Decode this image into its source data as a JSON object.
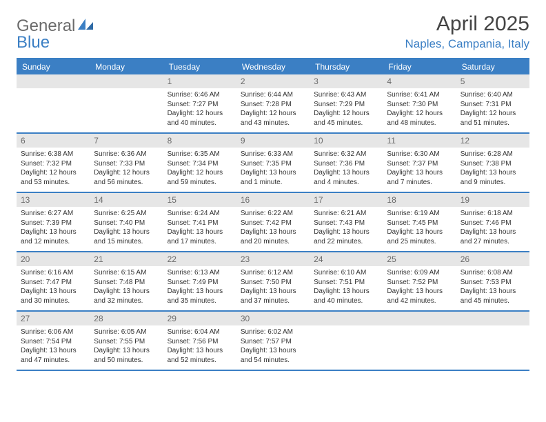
{
  "logo": {
    "text1": "General",
    "text2": "Blue"
  },
  "header": {
    "month_title": "April 2025",
    "location": "Naples, Campania, Italy"
  },
  "colors": {
    "accent": "#3b7fc4",
    "header_text": "#6b6b6b",
    "daynum_bg": "#e6e6e6",
    "body_text": "#333333",
    "white": "#ffffff"
  },
  "calendar": {
    "day_names": [
      "Sunday",
      "Monday",
      "Tuesday",
      "Wednesday",
      "Thursday",
      "Friday",
      "Saturday"
    ],
    "weeks": [
      [
        {
          "n": "",
          "sunrise": "",
          "sunset": "",
          "daylight": ""
        },
        {
          "n": "",
          "sunrise": "",
          "sunset": "",
          "daylight": ""
        },
        {
          "n": "1",
          "sunrise": "Sunrise: 6:46 AM",
          "sunset": "Sunset: 7:27 PM",
          "daylight": "Daylight: 12 hours and 40 minutes."
        },
        {
          "n": "2",
          "sunrise": "Sunrise: 6:44 AM",
          "sunset": "Sunset: 7:28 PM",
          "daylight": "Daylight: 12 hours and 43 minutes."
        },
        {
          "n": "3",
          "sunrise": "Sunrise: 6:43 AM",
          "sunset": "Sunset: 7:29 PM",
          "daylight": "Daylight: 12 hours and 45 minutes."
        },
        {
          "n": "4",
          "sunrise": "Sunrise: 6:41 AM",
          "sunset": "Sunset: 7:30 PM",
          "daylight": "Daylight: 12 hours and 48 minutes."
        },
        {
          "n": "5",
          "sunrise": "Sunrise: 6:40 AM",
          "sunset": "Sunset: 7:31 PM",
          "daylight": "Daylight: 12 hours and 51 minutes."
        }
      ],
      [
        {
          "n": "6",
          "sunrise": "Sunrise: 6:38 AM",
          "sunset": "Sunset: 7:32 PM",
          "daylight": "Daylight: 12 hours and 53 minutes."
        },
        {
          "n": "7",
          "sunrise": "Sunrise: 6:36 AM",
          "sunset": "Sunset: 7:33 PM",
          "daylight": "Daylight: 12 hours and 56 minutes."
        },
        {
          "n": "8",
          "sunrise": "Sunrise: 6:35 AM",
          "sunset": "Sunset: 7:34 PM",
          "daylight": "Daylight: 12 hours and 59 minutes."
        },
        {
          "n": "9",
          "sunrise": "Sunrise: 6:33 AM",
          "sunset": "Sunset: 7:35 PM",
          "daylight": "Daylight: 13 hours and 1 minute."
        },
        {
          "n": "10",
          "sunrise": "Sunrise: 6:32 AM",
          "sunset": "Sunset: 7:36 PM",
          "daylight": "Daylight: 13 hours and 4 minutes."
        },
        {
          "n": "11",
          "sunrise": "Sunrise: 6:30 AM",
          "sunset": "Sunset: 7:37 PM",
          "daylight": "Daylight: 13 hours and 7 minutes."
        },
        {
          "n": "12",
          "sunrise": "Sunrise: 6:28 AM",
          "sunset": "Sunset: 7:38 PM",
          "daylight": "Daylight: 13 hours and 9 minutes."
        }
      ],
      [
        {
          "n": "13",
          "sunrise": "Sunrise: 6:27 AM",
          "sunset": "Sunset: 7:39 PM",
          "daylight": "Daylight: 13 hours and 12 minutes."
        },
        {
          "n": "14",
          "sunrise": "Sunrise: 6:25 AM",
          "sunset": "Sunset: 7:40 PM",
          "daylight": "Daylight: 13 hours and 15 minutes."
        },
        {
          "n": "15",
          "sunrise": "Sunrise: 6:24 AM",
          "sunset": "Sunset: 7:41 PM",
          "daylight": "Daylight: 13 hours and 17 minutes."
        },
        {
          "n": "16",
          "sunrise": "Sunrise: 6:22 AM",
          "sunset": "Sunset: 7:42 PM",
          "daylight": "Daylight: 13 hours and 20 minutes."
        },
        {
          "n": "17",
          "sunrise": "Sunrise: 6:21 AM",
          "sunset": "Sunset: 7:43 PM",
          "daylight": "Daylight: 13 hours and 22 minutes."
        },
        {
          "n": "18",
          "sunrise": "Sunrise: 6:19 AM",
          "sunset": "Sunset: 7:45 PM",
          "daylight": "Daylight: 13 hours and 25 minutes."
        },
        {
          "n": "19",
          "sunrise": "Sunrise: 6:18 AM",
          "sunset": "Sunset: 7:46 PM",
          "daylight": "Daylight: 13 hours and 27 minutes."
        }
      ],
      [
        {
          "n": "20",
          "sunrise": "Sunrise: 6:16 AM",
          "sunset": "Sunset: 7:47 PM",
          "daylight": "Daylight: 13 hours and 30 minutes."
        },
        {
          "n": "21",
          "sunrise": "Sunrise: 6:15 AM",
          "sunset": "Sunset: 7:48 PM",
          "daylight": "Daylight: 13 hours and 32 minutes."
        },
        {
          "n": "22",
          "sunrise": "Sunrise: 6:13 AM",
          "sunset": "Sunset: 7:49 PM",
          "daylight": "Daylight: 13 hours and 35 minutes."
        },
        {
          "n": "23",
          "sunrise": "Sunrise: 6:12 AM",
          "sunset": "Sunset: 7:50 PM",
          "daylight": "Daylight: 13 hours and 37 minutes."
        },
        {
          "n": "24",
          "sunrise": "Sunrise: 6:10 AM",
          "sunset": "Sunset: 7:51 PM",
          "daylight": "Daylight: 13 hours and 40 minutes."
        },
        {
          "n": "25",
          "sunrise": "Sunrise: 6:09 AM",
          "sunset": "Sunset: 7:52 PM",
          "daylight": "Daylight: 13 hours and 42 minutes."
        },
        {
          "n": "26",
          "sunrise": "Sunrise: 6:08 AM",
          "sunset": "Sunset: 7:53 PM",
          "daylight": "Daylight: 13 hours and 45 minutes."
        }
      ],
      [
        {
          "n": "27",
          "sunrise": "Sunrise: 6:06 AM",
          "sunset": "Sunset: 7:54 PM",
          "daylight": "Daylight: 13 hours and 47 minutes."
        },
        {
          "n": "28",
          "sunrise": "Sunrise: 6:05 AM",
          "sunset": "Sunset: 7:55 PM",
          "daylight": "Daylight: 13 hours and 50 minutes."
        },
        {
          "n": "29",
          "sunrise": "Sunrise: 6:04 AM",
          "sunset": "Sunset: 7:56 PM",
          "daylight": "Daylight: 13 hours and 52 minutes."
        },
        {
          "n": "30",
          "sunrise": "Sunrise: 6:02 AM",
          "sunset": "Sunset: 7:57 PM",
          "daylight": "Daylight: 13 hours and 54 minutes."
        },
        {
          "n": "",
          "sunrise": "",
          "sunset": "",
          "daylight": ""
        },
        {
          "n": "",
          "sunrise": "",
          "sunset": "",
          "daylight": ""
        },
        {
          "n": "",
          "sunrise": "",
          "sunset": "",
          "daylight": ""
        }
      ]
    ]
  }
}
